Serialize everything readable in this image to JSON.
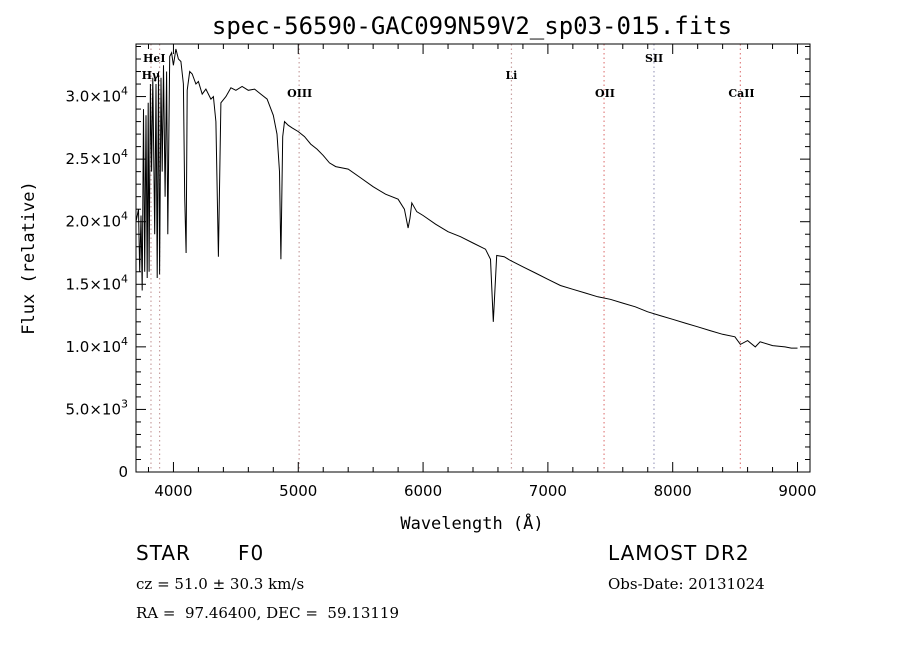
{
  "chart_data": {
    "type": "line",
    "title": "spec-56590-GAC099N59V2_sp03-015.fits",
    "xlabel": "Wavelength (Å)",
    "ylabel": "Flux (relative)",
    "xlim": [
      3700,
      9100
    ],
    "ylim": [
      0,
      34200
    ],
    "x_ticks": [
      4000,
      5000,
      6000,
      7000,
      8000,
      9000
    ],
    "x_tick_labels": [
      "4000",
      "5000",
      "6000",
      "7000",
      "8000",
      "9000"
    ],
    "y_ticks": [
      {
        "value": 0,
        "mantissa": "0",
        "exp": ""
      },
      {
        "value": 5000,
        "mantissa": "5.0×10",
        "exp": "3"
      },
      {
        "value": 10000,
        "mantissa": "1.0×10",
        "exp": "4"
      },
      {
        "value": 15000,
        "mantissa": "1.5×10",
        "exp": "4"
      },
      {
        "value": 20000,
        "mantissa": "2.0×10",
        "exp": "4"
      },
      {
        "value": 25000,
        "mantissa": "2.5×10",
        "exp": "4"
      },
      {
        "value": 30000,
        "mantissa": "3.0×10",
        "exp": "4"
      }
    ],
    "line_markers": [
      {
        "wavelength": 3820,
        "label": "HeI",
        "color": "#c8a0a0"
      },
      {
        "wavelength": 3889,
        "label": "Hγ",
        "color": "#c8a0a0"
      },
      {
        "wavelength": 5007,
        "label": "OIII",
        "color": "#c8a0a0"
      },
      {
        "wavelength": 6708,
        "label": "Li",
        "color": "#c8a0a0"
      },
      {
        "wavelength": 7450,
        "label": "OII",
        "color": "#e08080"
      },
      {
        "wavelength": 7850,
        "label": "SII",
        "color": "#a0a0c0"
      },
      {
        "wavelength": 8542,
        "label": "CaII",
        "color": "#e08080"
      }
    ],
    "series": [
      {
        "name": "flux",
        "x": [
          3700,
          3720,
          3730,
          3740,
          3750,
          3760,
          3770,
          3780,
          3790,
          3798,
          3805,
          3815,
          3825,
          3835,
          3850,
          3860,
          3870,
          3880,
          3889,
          3900,
          3910,
          3920,
          3933,
          3945,
          3955,
          3970,
          3985,
          4000,
          4020,
          4040,
          4060,
          4080,
          4090,
          4101,
          4110,
          4130,
          4150,
          4180,
          4200,
          4230,
          4260,
          4300,
          4320,
          4340,
          4360,
          4380,
          4420,
          4460,
          4500,
          4550,
          4600,
          4650,
          4700,
          4750,
          4800,
          4830,
          4850,
          4861,
          4875,
          4890,
          4920,
          4950,
          5000,
          5050,
          5100,
          5150,
          5200,
          5250,
          5300,
          5400,
          5500,
          5600,
          5700,
          5800,
          5850,
          5880,
          5895,
          5910,
          5950,
          6000,
          6100,
          6200,
          6300,
          6400,
          6500,
          6540,
          6563,
          6590,
          6650,
          6700,
          6800,
          6900,
          7000,
          7100,
          7200,
          7300,
          7400,
          7500,
          7600,
          7700,
          7800,
          7900,
          8000,
          8100,
          8200,
          8300,
          8400,
          8498,
          8542,
          8600,
          8662,
          8700,
          8800,
          8900,
          8950,
          9000
        ],
        "y": [
          20000,
          21000,
          16000,
          20500,
          14500,
          29000,
          16000,
          28500,
          15500,
          29500,
          16000,
          31000,
          24000,
          31500,
          19000,
          31000,
          15500,
          32000,
          15800,
          31500,
          24000,
          32500,
          22000,
          32000,
          19000,
          33200,
          33500,
          32500,
          33800,
          33000,
          32800,
          31000,
          22000,
          17500,
          30500,
          32000,
          31800,
          31000,
          31200,
          30200,
          30600,
          29800,
          30000,
          28000,
          17200,
          29500,
          30000,
          30700,
          30500,
          30800,
          30500,
          30600,
          30200,
          29800,
          28500,
          27000,
          24000,
          17000,
          26800,
          28000,
          27700,
          27500,
          27200,
          26800,
          26200,
          25800,
          25300,
          24700,
          24400,
          24200,
          23500,
          22800,
          22200,
          21800,
          21000,
          19500,
          20300,
          21500,
          20800,
          20500,
          19800,
          19200,
          18800,
          18300,
          17800,
          17000,
          12000,
          17300,
          17200,
          16900,
          16400,
          15900,
          15400,
          14900,
          14600,
          14300,
          14000,
          13800,
          13500,
          13200,
          12800,
          12500,
          12200,
          11900,
          11600,
          11300,
          11000,
          10800,
          10200,
          10500,
          10000,
          10400,
          10100,
          10000,
          9900,
          9900
        ]
      }
    ]
  },
  "info": {
    "object_class": "STAR",
    "subclass": "F0",
    "survey": "LAMOST DR2",
    "cz": "cz = 51.0 ± 30.3 km/s",
    "obs_date": "Obs-Date: 20131024",
    "coords": "RA =  97.46400, DEC =  59.13119"
  }
}
